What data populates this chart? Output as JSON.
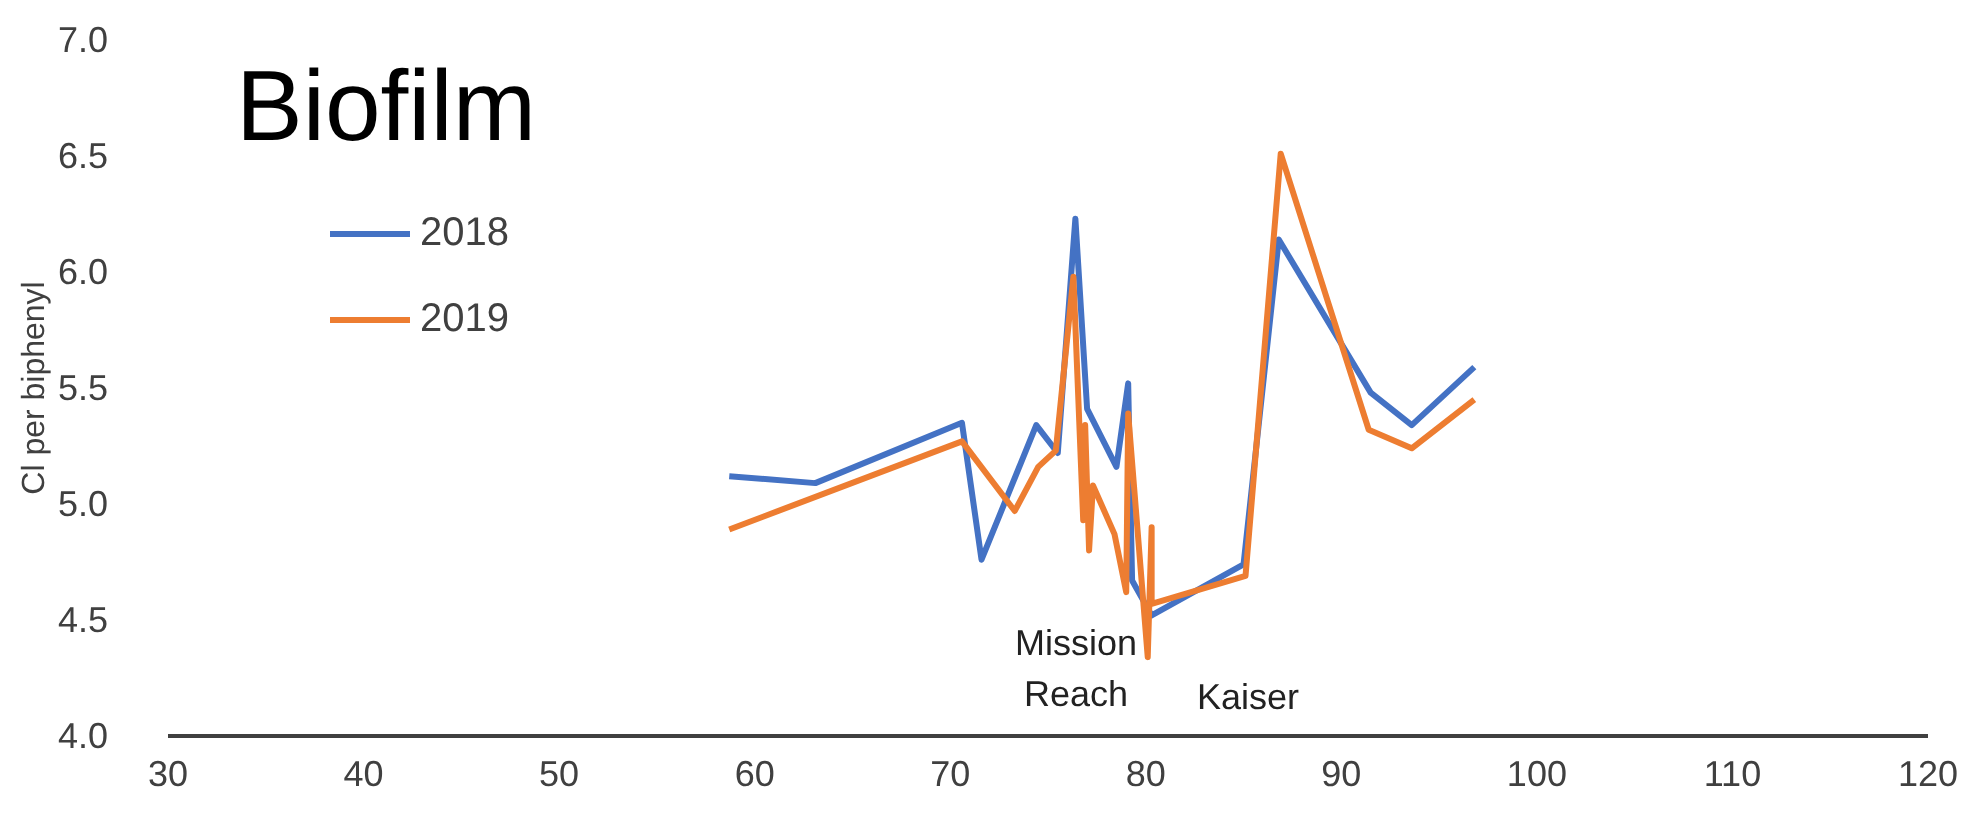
{
  "chart_data": {
    "type": "line",
    "title": "Biofilm",
    "ylabel": "Cl per biphenyl",
    "xlim": [
      30,
      120
    ],
    "xticks": [
      30,
      40,
      50,
      60,
      70,
      80,
      90,
      100,
      110,
      120
    ],
    "ylim": [
      4,
      7
    ],
    "yticks": [
      {
        "value": 4,
        "label": "4.0"
      },
      {
        "value": 4.5,
        "label": "4.5"
      },
      {
        "value": 5,
        "label": "5.0"
      },
      {
        "value": 5.5,
        "label": "5.5"
      },
      {
        "value": 6,
        "label": "6.0"
      },
      {
        "value": 6.5,
        "label": "6.5"
      },
      {
        "value": 7,
        "label": "7.0"
      }
    ],
    "grid": false,
    "legend": "top left",
    "marker": "none",
    "line_style": "solid",
    "series": [
      {
        "name": "2018",
        "color": "#4472c4",
        "x": [
          58.7,
          63.1,
          70.6,
          71.6,
          74.4,
          75.5,
          76.4,
          77.0,
          78.5,
          79.1,
          79.3,
          80.3,
          85.0,
          86.8,
          91.5,
          93.6,
          96.8
        ],
        "values": [
          5.12,
          5.09,
          5.35,
          4.76,
          5.34,
          5.22,
          6.23,
          5.41,
          5.16,
          5.52,
          4.67,
          4.52,
          4.74,
          6.14,
          5.48,
          5.34,
          5.59
        ]
      },
      {
        "name": "2019",
        "color": "#ed7d31",
        "x": [
          58.7,
          70.6,
          73.3,
          74.5,
          75.4,
          76.3,
          76.5,
          76.8,
          76.9,
          77.1,
          77.3,
          78.4,
          79.0,
          79.1,
          80.1,
          80.3,
          80.3,
          85.1,
          86.9,
          91.4,
          93.6,
          96.8
        ],
        "values": [
          4.89,
          5.27,
          4.97,
          5.16,
          5.23,
          5.98,
          5.56,
          4.93,
          5.34,
          4.8,
          5.08,
          4.87,
          4.62,
          5.39,
          4.34,
          4.9,
          4.57,
          4.69,
          6.51,
          5.32,
          5.24,
          5.45
        ]
      }
    ],
    "annotations": [
      "Mission Reach",
      "Kaiser"
    ]
  }
}
